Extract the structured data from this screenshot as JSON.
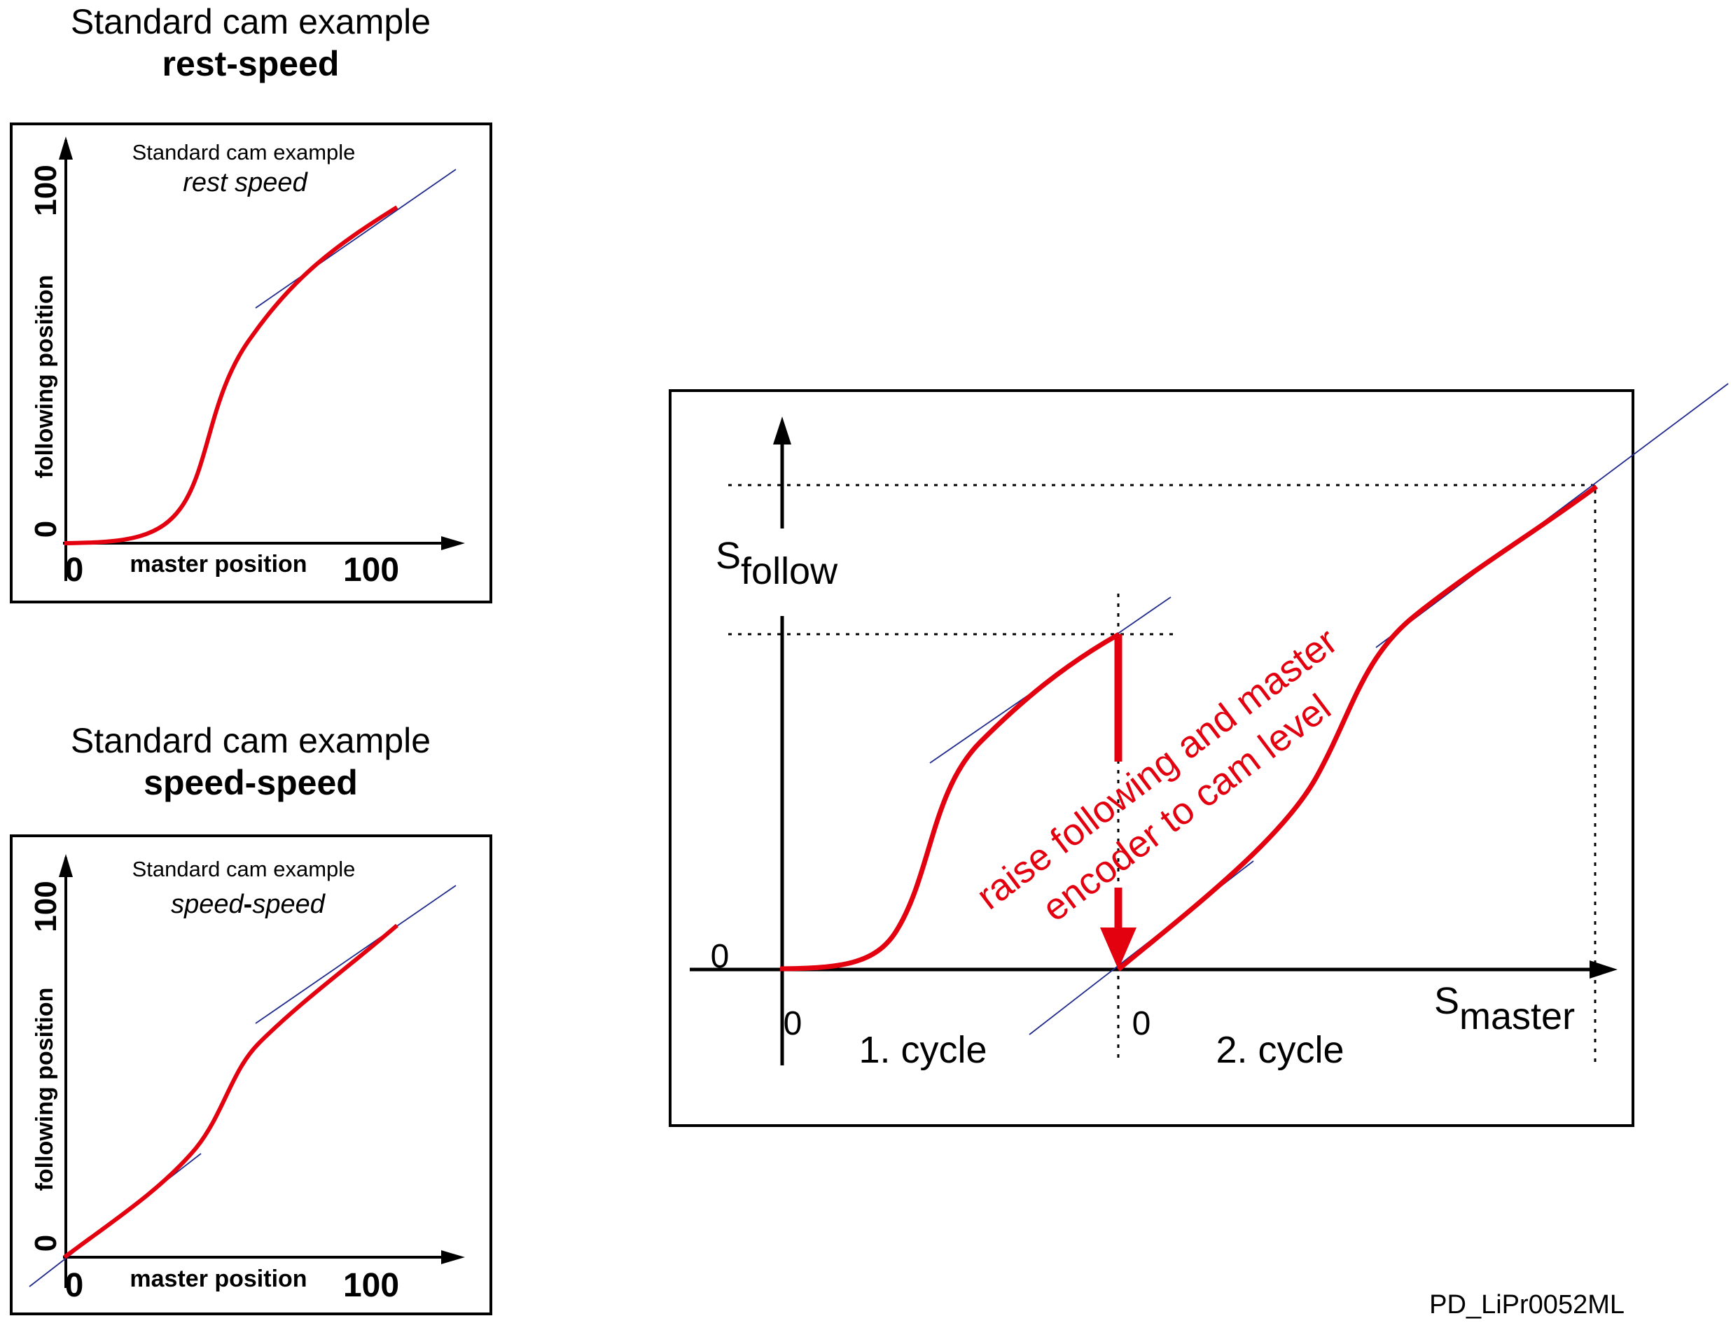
{
  "colors": {
    "curve": "#e3000f",
    "tangent": "#1f2a8c",
    "axis": "#000000"
  },
  "top_example": {
    "heading_line1": "Standard cam example",
    "heading_line2": "rest-speed",
    "inner_title_line1": "Standard cam example",
    "inner_title_line2": "rest speed",
    "y_axis_label": "following position",
    "x_axis_label": "master position",
    "y_max": "100",
    "y_min": "0",
    "x_min": "0",
    "x_max": "100"
  },
  "bottom_example": {
    "heading_line1": "Standard cam example",
    "heading_line2": "speed-speed",
    "inner_title_line1": "Standard cam example",
    "inner_title_a": "speed",
    "inner_title_dash": "-",
    "inner_title_b": "speed",
    "y_axis_label": "following position",
    "x_axis_label": "master position",
    "y_max": "100",
    "y_min": "0",
    "x_min": "0",
    "x_max": "100"
  },
  "main_diagram": {
    "y_axis_label_base": "S",
    "y_axis_label_sub": "follow",
    "x_axis_label_base": "S",
    "x_axis_label_sub": "master",
    "y_zero": "0",
    "x_zero_1": "0",
    "x_zero_2": "0",
    "cycle_1": "1. cycle",
    "cycle_2": "2. cycle",
    "annotation_line1": "raise following and master",
    "annotation_line2": "encoder to cam level"
  },
  "footer": {
    "doc_id": "PD_LiPr0052ML"
  }
}
